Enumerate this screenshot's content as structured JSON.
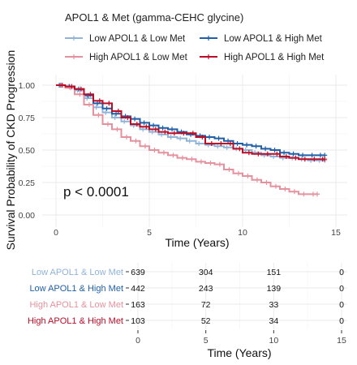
{
  "chart_data": {
    "type": "line",
    "title": "",
    "legend_title": "APOL1 & Met (gamma-CEHC glycine)",
    "legend_position": "top",
    "xlabel": "Time (Years)",
    "ylabel": "Survival Probability of CKD Progression",
    "xlim": [
      0,
      15
    ],
    "ylim": [
      0,
      1
    ],
    "x_ticks": [
      "0",
      "5",
      "10",
      "15"
    ],
    "y_ticks": [
      "0.00",
      "0.25",
      "0.50",
      "0.75",
      "1.00"
    ],
    "annotation": "p < 0.0001",
    "grid": true,
    "series": [
      {
        "name": "Low APOL1 & Low Met",
        "color": "#8fb3d9",
        "points": [
          [
            0,
            1.0
          ],
          [
            0.5,
            0.99
          ],
          [
            1,
            0.96
          ],
          [
            1.5,
            0.9
          ],
          [
            2,
            0.83
          ],
          [
            2.5,
            0.79
          ],
          [
            3,
            0.75
          ],
          [
            3.5,
            0.72
          ],
          [
            4,
            0.69
          ],
          [
            4.5,
            0.66
          ],
          [
            5,
            0.64
          ],
          [
            5.5,
            0.62
          ],
          [
            6,
            0.6
          ],
          [
            6.5,
            0.59
          ],
          [
            7,
            0.57
          ],
          [
            7.5,
            0.55
          ],
          [
            8,
            0.54
          ],
          [
            8.5,
            0.53
          ],
          [
            9,
            0.52
          ],
          [
            9.5,
            0.51
          ],
          [
            10,
            0.5
          ],
          [
            10.5,
            0.48
          ],
          [
            11,
            0.46
          ],
          [
            11.5,
            0.45
          ],
          [
            12,
            0.44
          ],
          [
            12.5,
            0.44
          ],
          [
            13,
            0.43
          ],
          [
            13.5,
            0.42
          ],
          [
            14,
            0.42
          ],
          [
            14.4,
            0.42
          ]
        ]
      },
      {
        "name": "Low APOL1 & High Met",
        "color": "#1f5fa8",
        "points": [
          [
            0,
            1.0
          ],
          [
            0.5,
            0.99
          ],
          [
            1,
            0.97
          ],
          [
            1.5,
            0.92
          ],
          [
            2,
            0.86
          ],
          [
            2.5,
            0.82
          ],
          [
            3,
            0.78
          ],
          [
            3.5,
            0.76
          ],
          [
            4,
            0.74
          ],
          [
            4.5,
            0.71
          ],
          [
            5,
            0.69
          ],
          [
            5.5,
            0.67
          ],
          [
            6,
            0.66
          ],
          [
            6.5,
            0.64
          ],
          [
            7,
            0.62
          ],
          [
            7.5,
            0.61
          ],
          [
            8,
            0.6
          ],
          [
            8.5,
            0.59
          ],
          [
            9,
            0.57
          ],
          [
            9.5,
            0.55
          ],
          [
            10,
            0.54
          ],
          [
            10.5,
            0.53
          ],
          [
            11,
            0.51
          ],
          [
            11.5,
            0.5
          ],
          [
            12,
            0.48
          ],
          [
            12.5,
            0.47
          ],
          [
            13,
            0.46
          ],
          [
            13.5,
            0.46
          ],
          [
            14,
            0.46
          ],
          [
            14.4,
            0.46
          ]
        ]
      },
      {
        "name": "High APOL1 & Low Met",
        "color": "#e6919e",
        "points": [
          [
            0,
            1.0
          ],
          [
            0.5,
            0.98
          ],
          [
            1,
            0.93
          ],
          [
            1.5,
            0.85
          ],
          [
            2,
            0.77
          ],
          [
            2.5,
            0.7
          ],
          [
            3,
            0.66
          ],
          [
            3.5,
            0.6
          ],
          [
            4,
            0.57
          ],
          [
            4.5,
            0.53
          ],
          [
            5,
            0.5
          ],
          [
            5.5,
            0.48
          ],
          [
            6,
            0.46
          ],
          [
            6.5,
            0.44
          ],
          [
            7,
            0.43
          ],
          [
            7.5,
            0.41
          ],
          [
            8,
            0.4
          ],
          [
            8.5,
            0.39
          ],
          [
            9,
            0.35
          ],
          [
            9.5,
            0.32
          ],
          [
            10,
            0.3
          ],
          [
            10.5,
            0.27
          ],
          [
            11,
            0.25
          ],
          [
            11.5,
            0.22
          ],
          [
            12,
            0.2
          ],
          [
            12.5,
            0.18
          ],
          [
            13,
            0.16
          ],
          [
            13.5,
            0.16
          ],
          [
            14,
            0.16
          ]
        ]
      },
      {
        "name": "High APOL1 & High Met",
        "color": "#bd0d26",
        "points": [
          [
            0,
            1.0
          ],
          [
            0.5,
            0.99
          ],
          [
            1,
            0.97
          ],
          [
            1.5,
            0.93
          ],
          [
            2,
            0.88
          ],
          [
            2.5,
            0.86
          ],
          [
            3,
            0.8
          ],
          [
            3.5,
            0.75
          ],
          [
            4,
            0.7
          ],
          [
            4.5,
            0.68
          ],
          [
            5,
            0.66
          ],
          [
            5.5,
            0.64
          ],
          [
            6,
            0.63
          ],
          [
            6.5,
            0.63
          ],
          [
            7,
            0.63
          ],
          [
            7.5,
            0.6
          ],
          [
            8,
            0.55
          ],
          [
            8.5,
            0.55
          ],
          [
            9,
            0.55
          ],
          [
            9.5,
            0.51
          ],
          [
            10,
            0.48
          ],
          [
            10.5,
            0.47
          ],
          [
            11,
            0.47
          ],
          [
            11.5,
            0.47
          ],
          [
            12,
            0.45
          ],
          [
            12.5,
            0.44
          ],
          [
            13,
            0.43
          ],
          [
            13.5,
            0.43
          ],
          [
            14,
            0.43
          ],
          [
            14.4,
            0.43
          ]
        ]
      }
    ],
    "risk_table": {
      "xlabel": "Time (Years)",
      "time_ticks": [
        "0",
        "5",
        "10",
        "15"
      ],
      "rows": [
        {
          "label": "Low APOL1 & Low Met",
          "color": "#8fb3d9",
          "counts": [
            "639",
            "304",
            "151",
            "0"
          ]
        },
        {
          "label": "Low APOL1 & High Met",
          "color": "#1f5fa8",
          "counts": [
            "442",
            "243",
            "139",
            "0"
          ]
        },
        {
          "label": "High APOL1 & Low Met",
          "color": "#e6919e",
          "counts": [
            "163",
            "72",
            "33",
            "0"
          ]
        },
        {
          "label": "High APOL1 & High Met",
          "color": "#bd0d26",
          "counts": [
            "103",
            "52",
            "34",
            "0"
          ]
        }
      ]
    }
  }
}
